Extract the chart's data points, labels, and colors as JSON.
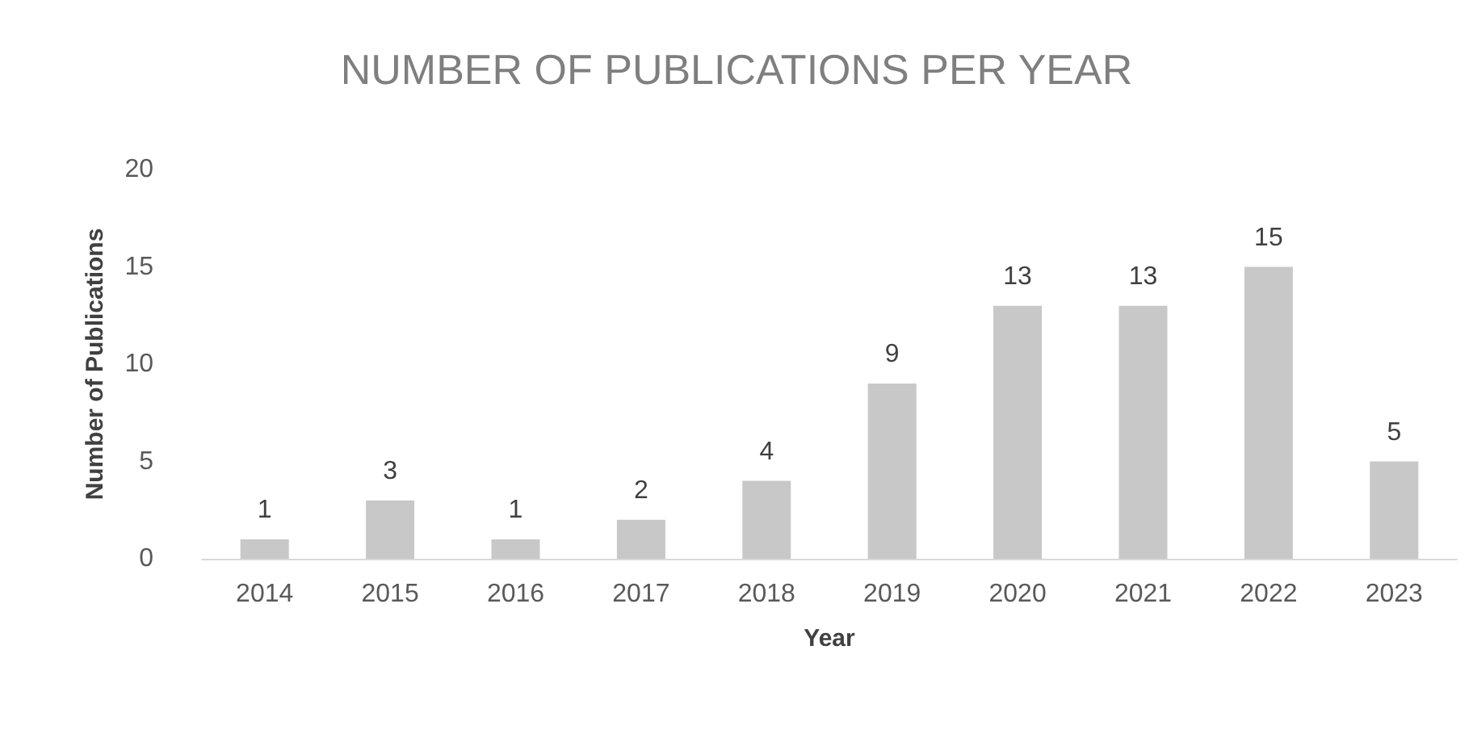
{
  "chart_data": {
    "type": "bar",
    "title": "NUMBER OF PUBLICATIONS PER YEAR",
    "xlabel": "Year",
    "ylabel": "Number of Publications",
    "categories": [
      "2014",
      "2015",
      "2016",
      "2017",
      "2018",
      "2019",
      "2020",
      "2021",
      "2022",
      "2023"
    ],
    "values": [
      1,
      3,
      1,
      2,
      4,
      9,
      13,
      13,
      15,
      5
    ],
    "color": "#c8c8c8",
    "ylim": [
      0,
      20
    ],
    "yticks": [
      0,
      5,
      10,
      15,
      20
    ],
    "data_labels": true
  }
}
